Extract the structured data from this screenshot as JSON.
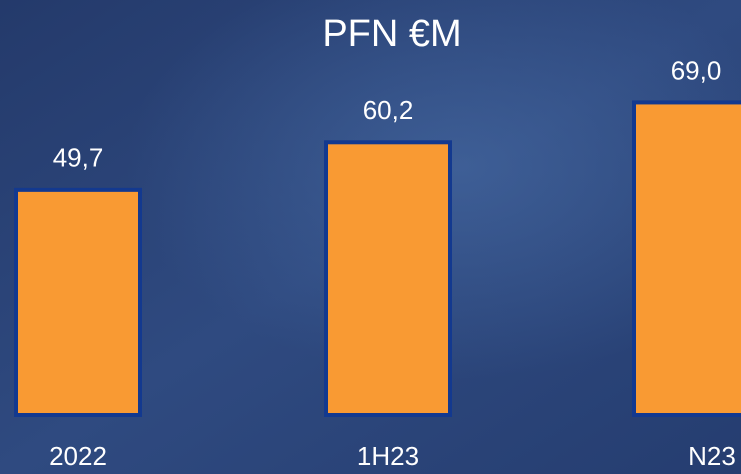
{
  "chart_data": {
    "type": "bar",
    "title": "PFN €M",
    "categories": [
      "2022",
      "1H23",
      "N23"
    ],
    "values": [
      49.7,
      60.2,
      69.0
    ],
    "value_labels": [
      "49,7",
      "60,2",
      "69,0"
    ],
    "color": "#f99a33"
  }
}
